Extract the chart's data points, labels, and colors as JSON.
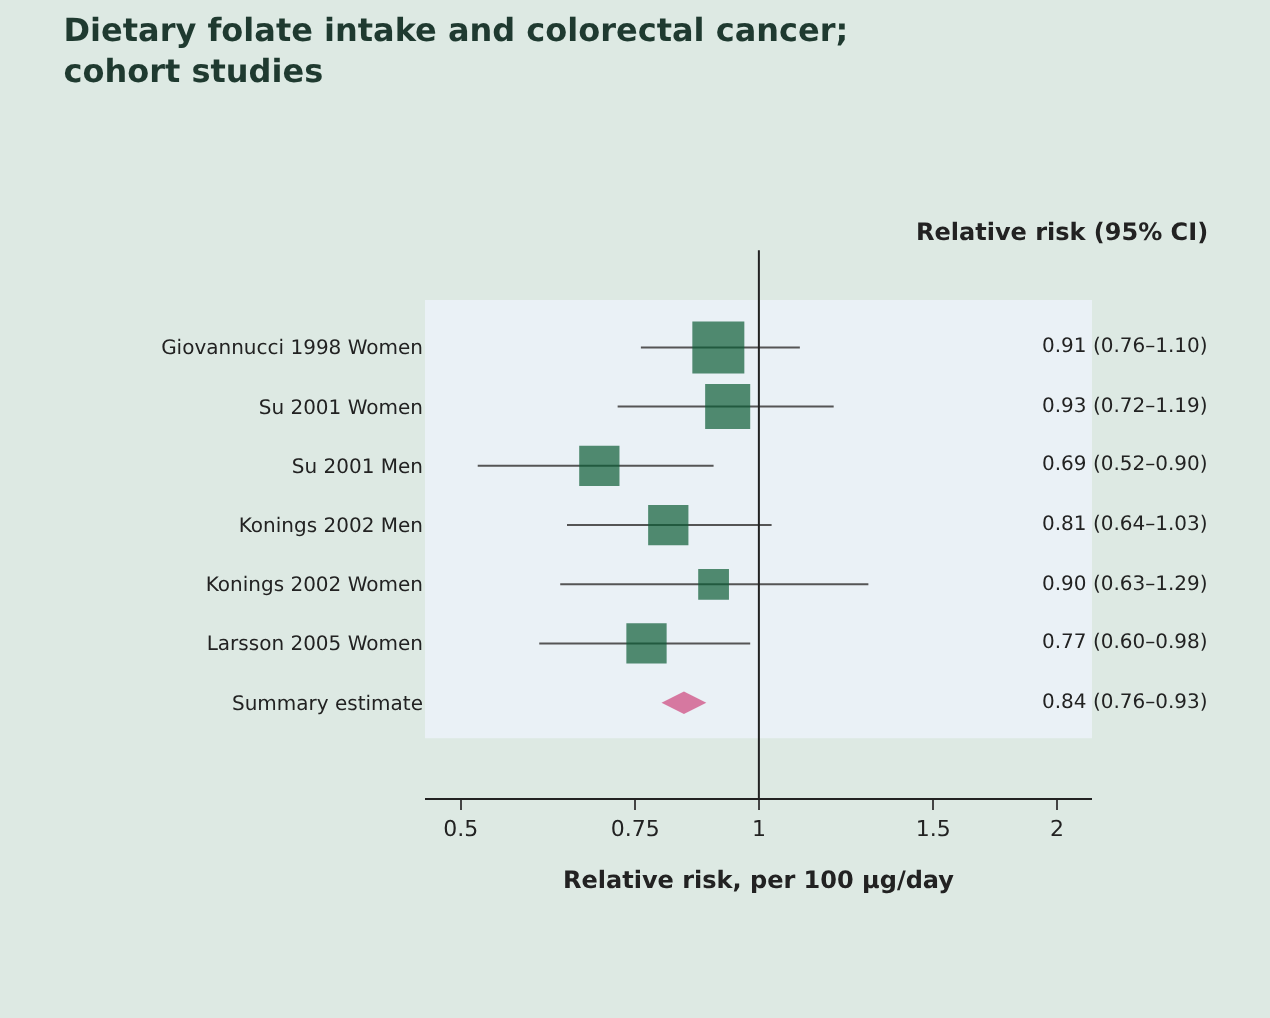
{
  "chart_data": {
    "type": "bubble",
    "title": "Dietary folate intake and colorectal cancer;\ncohort studies",
    "xlabel": "Relative risk, per 100 μg/day",
    "orientation": "horizontal",
    "log": "x",
    "categories": [
      "Giovannucci 1998 Women",
      "Su 2001 Women",
      "Su 2001 Men",
      "Konings 2002 Men",
      "Konings 2002 Women",
      "Larsson 2005 Women",
      "Summary estimate"
    ],
    "series": [
      {
        "marker": "square",
        "color": "#0d5c36",
        "values": [
          0.91,
          0.93,
          0.69,
          0.81,
          0.9,
          0.77,
          null
        ],
        "sizes": [
          1,
          0.75,
          0.6,
          0.6,
          0.35,
          0.6,
          null
        ],
        "errors": [
          [
            0.76,
            1.1
          ],
          [
            0.72,
            1.19
          ],
          [
            0.52,
            0.9
          ],
          [
            0.64,
            1.03
          ],
          [
            0.63,
            1.29
          ],
          [
            0.6,
            0.98
          ],
          null
        ]
      },
      {
        "type": "scatter",
        "marker": "diamond",
        "color": "#d678a0",
        "values": [
          null,
          null,
          null,
          null,
          null,
          null,
          0.84
        ]
      }
    ],
    "xlim": [
      0.46,
      2.17
    ],
    "xticks": [
      0.5,
      0.75,
      1,
      1.5,
      2
    ],
    "ref_lines": [
      {
        "axis": "x",
        "value": 1,
        "color": "#222222"
      }
    ],
    "annotations": [
      "Relative risk (95% CI)",
      "0.91 (0.76–1.10)",
      "0.93 (0.72–1.19)",
      "0.69 (0.52–0.90)",
      "0.81 (0.64–1.03)",
      "0.90 (0.63–1.29)",
      "0.77 (0.60–0.98)",
      "0.84 (0.76–0.93)"
    ],
    "grid": false
  }
}
